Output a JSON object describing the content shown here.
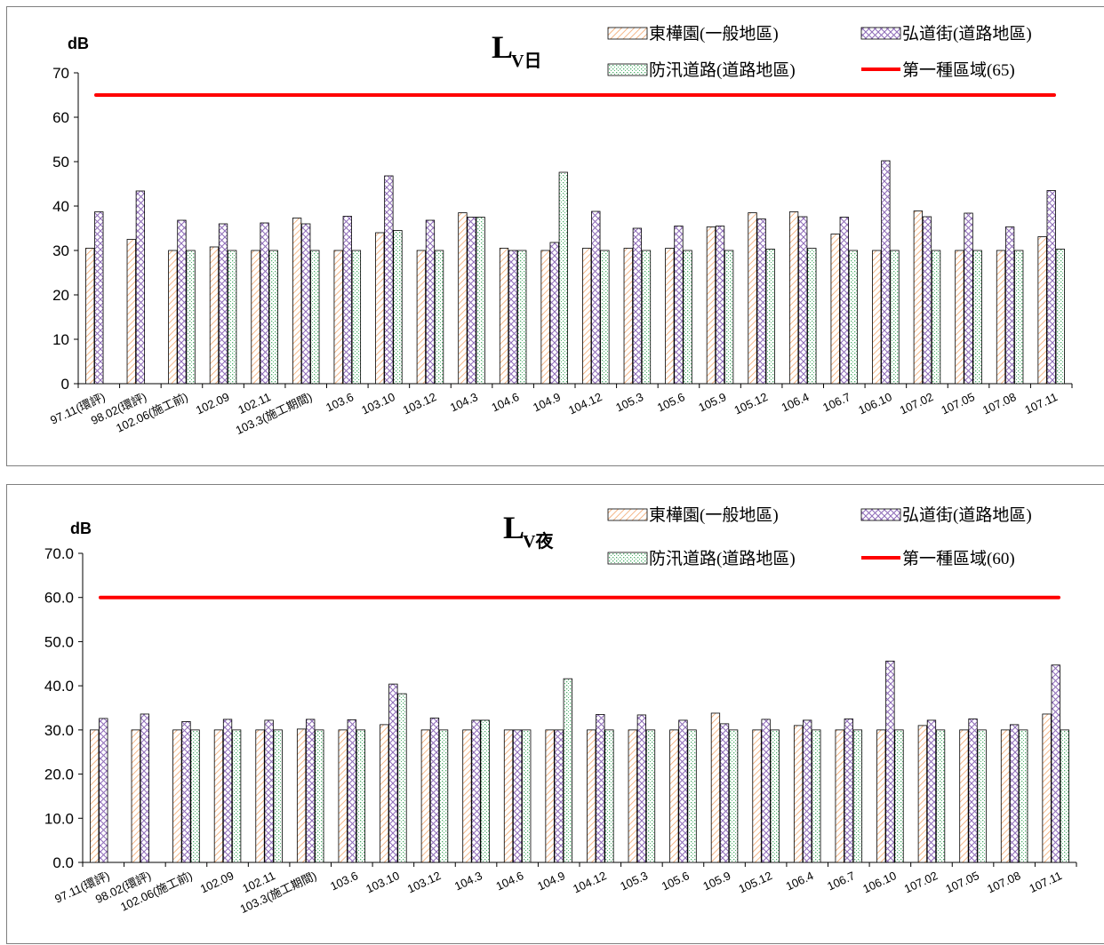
{
  "chart_data": [
    {
      "type": "bar",
      "title_main": "L",
      "title_sub": "V日",
      "ylabel": "dB",
      "ylim": [
        0,
        70
      ],
      "yticks": [
        "0",
        "10",
        "20",
        "30",
        "40",
        "50",
        "60",
        "70"
      ],
      "grid": false,
      "legend_position": "top-right",
      "categories": [
        "97.11(環評)",
        "98.02(環評)",
        "102.06(施工前)",
        "102.09",
        "102.11",
        "103.3(施工期間)",
        "103.6",
        "103.10",
        "103.12",
        "104.3",
        "104.6",
        "104.9",
        "104.12",
        "105.3",
        "105.6",
        "105.9",
        "105.12",
        "106.4",
        "106.7",
        "106.10",
        "107.02",
        "107.05",
        "107.08",
        "107.11"
      ],
      "series": [
        {
          "name": "東樺園(一般地區)",
          "pattern": "diag-orange",
          "values": [
            30.5,
            32.5,
            30.0,
            30.8,
            30.0,
            37.3,
            30.0,
            34.0,
            30.0,
            38.5,
            30.5,
            30.0,
            30.5,
            30.5,
            30.5,
            35.3,
            38.5,
            38.7,
            33.7,
            30.0,
            38.9,
            30.0,
            30.0,
            33.1
          ]
        },
        {
          "name": "弘道街(道路地區)",
          "pattern": "cross-purple",
          "values": [
            38.7,
            43.4,
            36.8,
            36.0,
            36.2,
            36.0,
            37.7,
            46.8,
            36.8,
            37.5,
            30.0,
            31.8,
            38.8,
            35.0,
            35.5,
            35.5,
            37.1,
            37.6,
            37.5,
            50.2,
            37.6,
            38.4,
            35.3,
            43.5
          ]
        },
        {
          "name": "防汛道路(道路地區)",
          "pattern": "dots-green",
          "values": [
            null,
            null,
            30.0,
            30.0,
            30.0,
            30.0,
            30.0,
            34.5,
            30.0,
            37.5,
            30.0,
            47.6,
            30.0,
            30.0,
            30.0,
            30.0,
            30.3,
            30.5,
            30.0,
            30.0,
            30.0,
            30.0,
            30.0,
            30.3
          ]
        }
      ],
      "reference_line": {
        "name": "第一種區域(65)",
        "value": 65,
        "color": "#ff0000"
      }
    },
    {
      "type": "bar",
      "title_main": "L",
      "title_sub": "V夜",
      "ylabel": "dB",
      "ylim": [
        0,
        70
      ],
      "yticks": [
        "0.0",
        "10.0",
        "20.0",
        "30.0",
        "40.0",
        "50.0",
        "60.0",
        "70.0"
      ],
      "grid": false,
      "legend_position": "top-right",
      "categories": [
        "97.11(環評)",
        "98.02(環評)",
        "102.06(施工前)",
        "102.09",
        "102.11",
        "103.3(施工期間)",
        "103.6",
        "103.10",
        "103.12",
        "104.3",
        "104.6",
        "104.9",
        "104.12",
        "105.3",
        "105.6",
        "105.9",
        "105.12",
        "106.4",
        "106.7",
        "106.10",
        "107.02",
        "107.05",
        "107.08",
        "107.11"
      ],
      "series": [
        {
          "name": "東樺園(一般地區)",
          "pattern": "diag-orange",
          "values": [
            30.0,
            30.0,
            30.0,
            30.0,
            30.0,
            30.2,
            30.0,
            31.2,
            30.0,
            30.0,
            30.0,
            30.0,
            30.0,
            30.0,
            30.0,
            33.8,
            30.0,
            31.0,
            30.0,
            30.0,
            31.0,
            30.0,
            30.0,
            33.6
          ]
        },
        {
          "name": "弘道街(道路地區)",
          "pattern": "cross-purple",
          "values": [
            32.6,
            33.6,
            31.9,
            32.4,
            32.2,
            32.4,
            32.3,
            40.4,
            32.7,
            32.2,
            30.0,
            30.0,
            33.5,
            33.4,
            32.2,
            31.4,
            32.4,
            32.2,
            32.5,
            45.6,
            32.2,
            32.5,
            31.2,
            44.7
          ]
        },
        {
          "name": "防汛道路(道路地區)",
          "pattern": "dots-green",
          "values": [
            null,
            null,
            30.0,
            30.0,
            30.0,
            30.0,
            30.0,
            38.2,
            30.0,
            32.2,
            30.0,
            41.6,
            30.0,
            30.0,
            30.0,
            30.0,
            30.0,
            30.0,
            30.0,
            30.0,
            30.0,
            30.0,
            30.0,
            30.0
          ]
        }
      ],
      "reference_line": {
        "name": "第一種區域(60)",
        "value": 60,
        "color": "#ff0000"
      }
    }
  ]
}
